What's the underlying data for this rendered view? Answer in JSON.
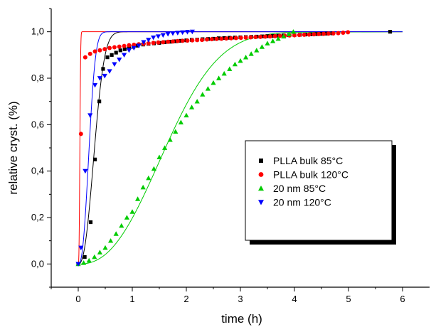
{
  "chart_data": {
    "type": "scatter",
    "title": "",
    "xlabel": "time (h)",
    "ylabel": "relative cryst. (%)",
    "xlim": [
      -0.5,
      6.5
    ],
    "ylim": [
      -0.1,
      1.1
    ],
    "xticks": [
      0,
      1,
      2,
      3,
      4,
      5,
      6
    ],
    "xtick_labels": [
      "0",
      "1",
      "2",
      "3",
      "4",
      "5",
      "6"
    ],
    "yticks": [
      0.0,
      0.2,
      0.4,
      0.6,
      0.8,
      1.0
    ],
    "ytick_labels": [
      "0,0",
      "0,2",
      "0,4",
      "0,6",
      "0,8",
      "1,0"
    ],
    "grid": false,
    "legend_position": "right-center",
    "series": [
      {
        "name": "PLLA bulk 85°C",
        "color": "#000000",
        "marker": "square",
        "fit_color": "#000000",
        "fit": {
          "rate_k": 12.3,
          "avrami_n": 2.4
        },
        "x": [
          0.0,
          0.12,
          0.23,
          0.31,
          0.39,
          0.46,
          0.54,
          0.62,
          0.7,
          0.78,
          0.86,
          0.94,
          1.02,
          1.1,
          1.2,
          1.3,
          1.4,
          1.5,
          1.6,
          1.7,
          1.8,
          1.9,
          2.0,
          2.1,
          2.2,
          2.3,
          2.4,
          2.5,
          2.6,
          2.7,
          2.8,
          2.9,
          3.0,
          3.1,
          3.2,
          3.3,
          3.4,
          3.5,
          3.6,
          3.7,
          3.8,
          3.9,
          4.0,
          4.1,
          4.2,
          4.3,
          4.4,
          4.5,
          4.6,
          4.7,
          5.77
        ],
        "y": [
          0.0,
          0.03,
          0.18,
          0.45,
          0.7,
          0.84,
          0.89,
          0.9,
          0.91,
          0.92,
          0.925,
          0.93,
          0.935,
          0.94,
          0.945,
          0.948,
          0.95,
          0.952,
          0.955,
          0.957,
          0.959,
          0.961,
          0.963,
          0.965,
          0.966,
          0.968,
          0.969,
          0.97,
          0.972,
          0.973,
          0.974,
          0.975,
          0.976,
          0.977,
          0.978,
          0.979,
          0.98,
          0.981,
          0.982,
          0.983,
          0.984,
          0.985,
          0.986,
          0.987,
          0.988,
          0.989,
          0.99,
          0.991,
          0.992,
          0.993,
          1.0
        ]
      },
      {
        "name": "PLLA bulk 120°C",
        "color": "#ff0000",
        "marker": "circle",
        "fit_color": "#ff0000",
        "fit": {
          "rate_k": 25000,
          "avrami_n": 3.0
        },
        "x": [
          0.05,
          0.13,
          0.22,
          0.31,
          0.4,
          0.49,
          0.58,
          0.67,
          0.76,
          0.85,
          0.94,
          1.03,
          1.12,
          1.21,
          1.3,
          1.39,
          1.48,
          1.57,
          1.66,
          1.75,
          1.84,
          1.93,
          2.02,
          2.11,
          2.2,
          2.29,
          2.38,
          2.47,
          2.56,
          2.65,
          2.74,
          2.83,
          2.92,
          3.01,
          3.1,
          3.19,
          3.28,
          3.37,
          3.46,
          3.55,
          3.64,
          3.73,
          3.82,
          3.91,
          4.0,
          4.09,
          4.18,
          4.27,
          4.36,
          4.45,
          4.54,
          4.63,
          4.72,
          4.81,
          4.9,
          4.99
        ],
        "y": [
          0.56,
          0.89,
          0.905,
          0.915,
          0.92,
          0.925,
          0.93,
          0.933,
          0.936,
          0.939,
          0.942,
          0.944,
          0.946,
          0.948,
          0.95,
          0.952,
          0.954,
          0.955,
          0.957,
          0.958,
          0.96,
          0.961,
          0.962,
          0.963,
          0.964,
          0.965,
          0.967,
          0.968,
          0.969,
          0.97,
          0.971,
          0.972,
          0.973,
          0.974,
          0.975,
          0.976,
          0.977,
          0.978,
          0.979,
          0.98,
          0.981,
          0.982,
          0.983,
          0.984,
          0.985,
          0.986,
          0.987,
          0.988,
          0.989,
          0.99,
          0.991,
          0.992,
          0.993,
          0.994,
          0.996,
          0.998
        ]
      },
      {
        "name": "20 nm 85°C",
        "color": "#00cc00",
        "marker": "triangle-up",
        "fit_color": "#00cc00",
        "fit": {
          "rate_k": 0.22,
          "avrami_n": 2.4
        },
        "x": [
          0.0,
          0.1,
          0.2,
          0.3,
          0.4,
          0.5,
          0.6,
          0.7,
          0.8,
          0.9,
          1.0,
          1.1,
          1.2,
          1.3,
          1.4,
          1.5,
          1.6,
          1.7,
          1.8,
          1.9,
          2.0,
          2.1,
          2.2,
          2.3,
          2.4,
          2.5,
          2.6,
          2.7,
          2.8,
          2.9,
          3.0,
          3.1,
          3.2,
          3.3,
          3.4,
          3.5,
          3.6,
          3.7,
          3.8,
          3.9,
          3.98
        ],
        "y": [
          0.0,
          0.005,
          0.015,
          0.03,
          0.05,
          0.07,
          0.1,
          0.13,
          0.165,
          0.2,
          0.225,
          0.28,
          0.33,
          0.37,
          0.41,
          0.46,
          0.5,
          0.535,
          0.57,
          0.61,
          0.64,
          0.675,
          0.7,
          0.73,
          0.755,
          0.78,
          0.8,
          0.82,
          0.84,
          0.86,
          0.875,
          0.89,
          0.905,
          0.92,
          0.935,
          0.95,
          0.96,
          0.97,
          0.98,
          0.99,
          1.0
        ]
      },
      {
        "name": "20 nm 120°C",
        "color": "#0000ff",
        "marker": "triangle-down",
        "fit_color": "#0000ff",
        "fit": {
          "rate_k": 38.0,
          "avrami_n": 2.5
        },
        "x": [
          0.0,
          0.05,
          0.13,
          0.22,
          0.31,
          0.4,
          0.49,
          0.58,
          0.67,
          0.76,
          0.85,
          0.94,
          1.03,
          1.12,
          1.21,
          1.3,
          1.39,
          1.48,
          1.57,
          1.66,
          1.75,
          1.84,
          1.93,
          2.02,
          2.11
        ],
        "y": [
          0.0,
          0.07,
          0.4,
          0.64,
          0.77,
          0.8,
          0.81,
          0.83,
          0.86,
          0.88,
          0.9,
          0.92,
          0.93,
          0.94,
          0.955,
          0.965,
          0.975,
          0.98,
          0.985,
          0.99,
          0.993,
          0.995,
          0.997,
          0.999,
          1.0
        ]
      }
    ]
  }
}
